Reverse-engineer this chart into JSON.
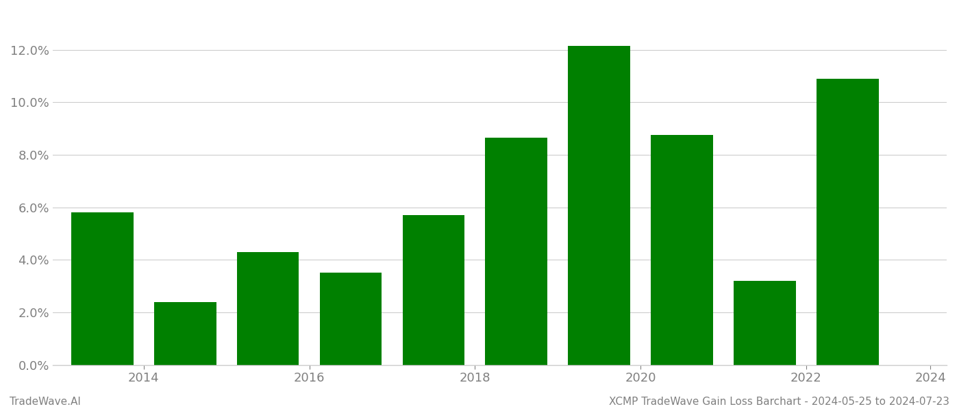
{
  "years": [
    2014,
    2015,
    2016,
    2017,
    2018,
    2019,
    2020,
    2021,
    2022,
    2023
  ],
  "values": [
    0.058,
    0.024,
    0.043,
    0.035,
    0.057,
    0.0865,
    0.1215,
    0.0875,
    0.032,
    0.109
  ],
  "bar_color": "#008000",
  "background_color": "#ffffff",
  "grid_color": "#cccccc",
  "tick_color": "#808080",
  "spine_color": "#cccccc",
  "ylim": [
    0,
    0.135
  ],
  "yticks": [
    0.0,
    0.02,
    0.04,
    0.06,
    0.08,
    0.1,
    0.12
  ],
  "xtick_positions": [
    0.5,
    2.5,
    4.5,
    6.5,
    8.5,
    10.0
  ],
  "xtick_labels": [
    "2014",
    "2016",
    "2018",
    "2020",
    "2022",
    "2024"
  ],
  "footer_left": "TradeWave.AI",
  "footer_right": "XCMP TradeWave Gain Loss Barchart - 2024-05-25 to 2024-07-23",
  "footer_color": "#808080",
  "footer_fontsize": 11
}
